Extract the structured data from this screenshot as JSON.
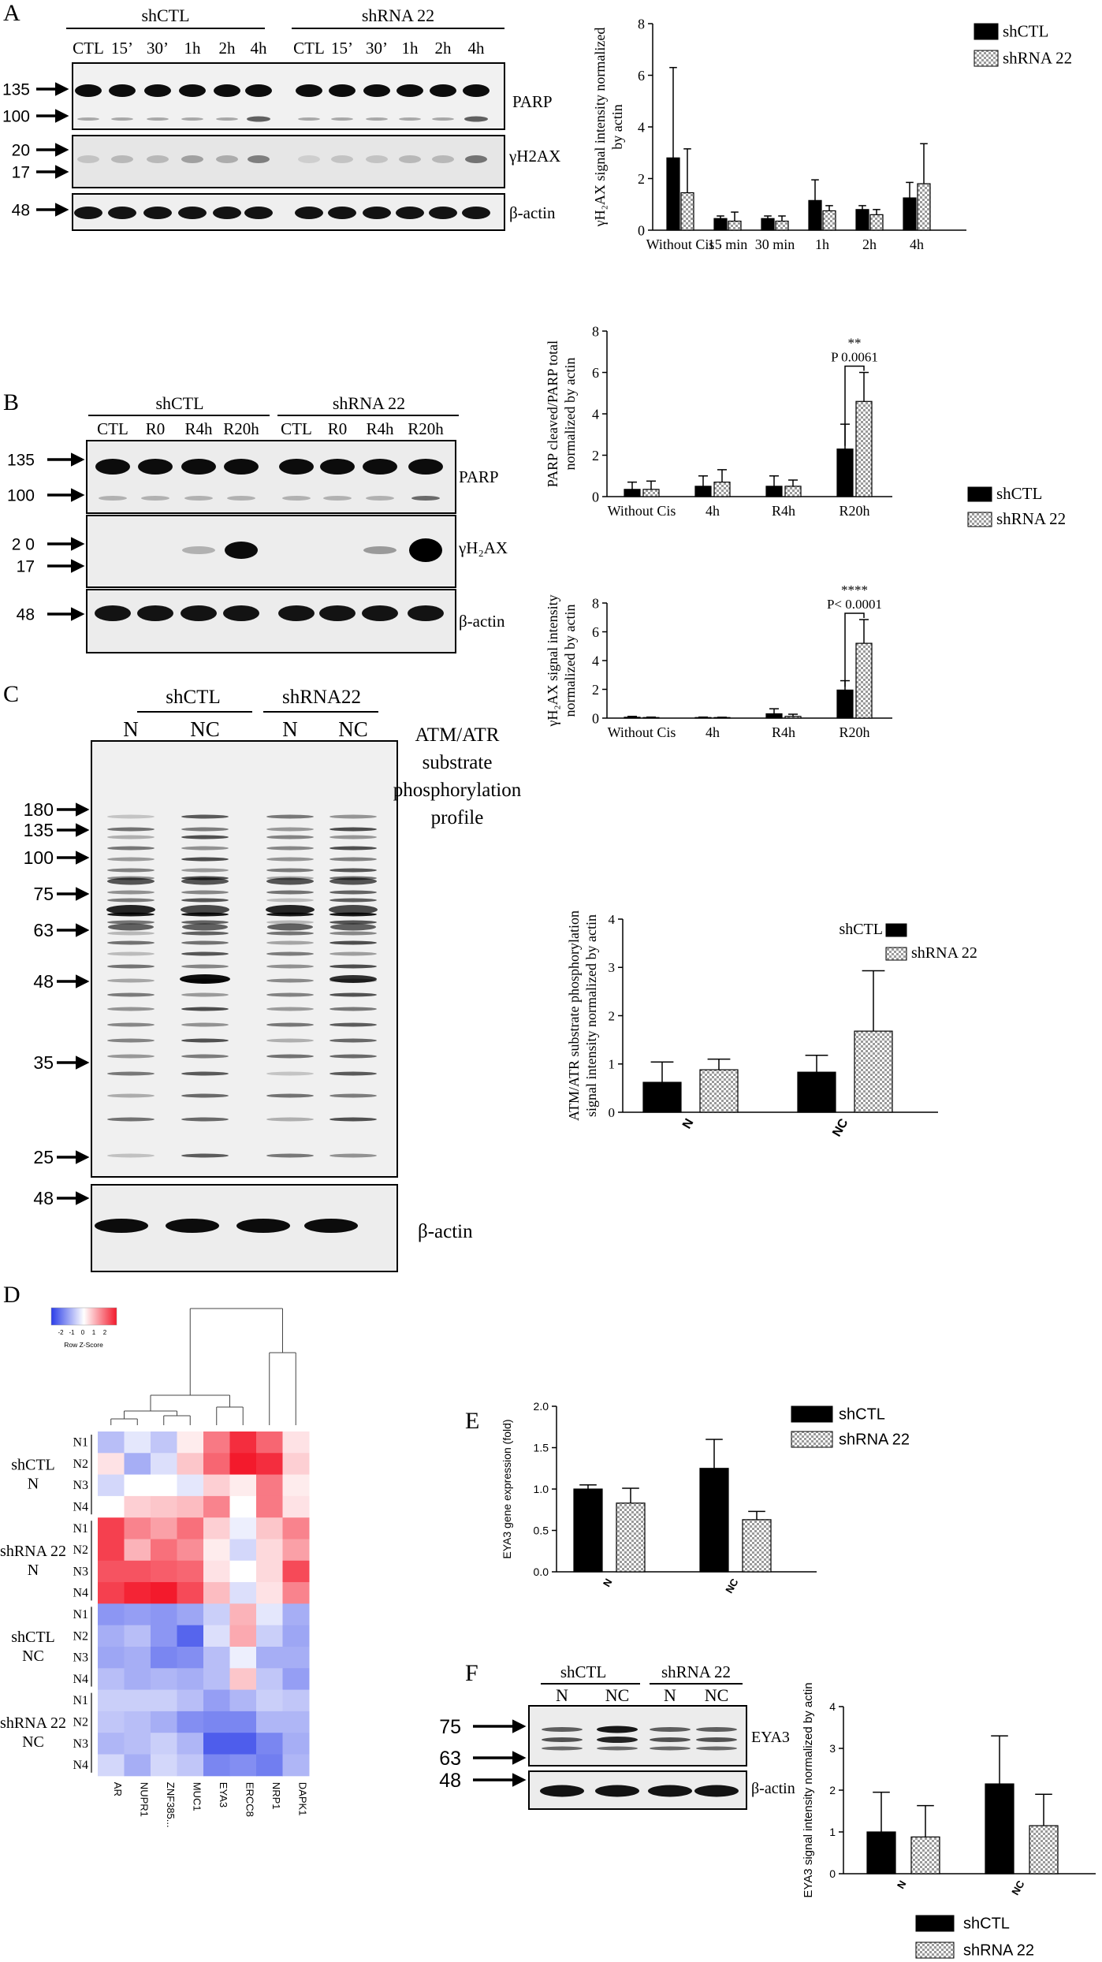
{
  "panels": {
    "A": "A",
    "B": "B",
    "C": "C",
    "D": "D",
    "E": "E",
    "F": "F"
  },
  "blotA": {
    "groups": [
      "shCTL",
      "shRNA 22"
    ],
    "lanes": [
      "CTL",
      "15’",
      "30’",
      "1h",
      "2h",
      "4h",
      "CTL",
      "15’",
      "30’",
      "1h",
      "2h",
      "4h"
    ],
    "markers": [
      "135",
      "100",
      "20",
      "17",
      "48"
    ],
    "labels": [
      "PARP",
      "γH2AX",
      "β-actin"
    ]
  },
  "blotB": {
    "groups": [
      "shCTL",
      "shRNA 22"
    ],
    "lanes": [
      "CTL",
      "R0",
      "R4h",
      "R20h",
      "CTL",
      "R0",
      "R4h",
      "R20h"
    ],
    "markers": [
      "135",
      "100",
      "2 0",
      "17",
      "48"
    ],
    "labels": [
      "PARP",
      "γH₂AX",
      "β-actin"
    ]
  },
  "blotC": {
    "groups": [
      "shCTL",
      "shRNA22"
    ],
    "lanes": [
      "N",
      "NC",
      "N",
      "NC"
    ],
    "markers": [
      "180",
      "135",
      "100",
      "75",
      "63",
      "48",
      "35",
      "25"
    ],
    "actin_marker": "48",
    "title_lines": [
      "ATM/ATR",
      "substrate",
      "phosphorylation",
      "profile"
    ],
    "actin_label": "β-actin"
  },
  "blotF": {
    "groups": [
      "shCTL",
      "shRNA 22"
    ],
    "lanes": [
      "N",
      "NC",
      "N",
      "NC"
    ],
    "markers": [
      "75",
      "63",
      "48"
    ],
    "labels": [
      "EYA3",
      "β-actin"
    ]
  },
  "heatmap": {
    "key_ticks": [
      "-2",
      "-1",
      "0",
      "1",
      "2"
    ],
    "key_title": "Row Z-Score",
    "genes": [
      "AR",
      "NUPR1",
      "ZNF385...",
      "MUC1",
      "EYA3",
      "ERCC8",
      "NRP1",
      "DAPK1"
    ],
    "groups": [
      {
        "label_lines": [
          "shCTL",
          "N"
        ],
        "rows": [
          "N1",
          "N2",
          "N3",
          "N4"
        ]
      },
      {
        "label_lines": [
          "shRNA 22",
          "N"
        ],
        "rows": [
          "N1",
          "N2",
          "N3",
          "N4"
        ]
      },
      {
        "label_lines": [
          "shCTL",
          "NC"
        ],
        "rows": [
          "N1",
          "N2",
          "N3",
          "N4"
        ]
      },
      {
        "label_lines": [
          "shRNA 22",
          "NC"
        ],
        "rows": [
          "N1",
          "N2",
          "N3",
          "N4"
        ]
      }
    ],
    "z": [
      [
        -0.8,
        -0.3,
        -0.7,
        0.2,
        1.4,
        2.2,
        1.6,
        0.3
      ],
      [
        0.3,
        -1.0,
        -0.4,
        0.6,
        1.6,
        2.4,
        2.2,
        0.5
      ],
      [
        -0.5,
        0.0,
        0.0,
        -0.3,
        0.5,
        0.2,
        1.4,
        0.2
      ],
      [
        0.0,
        0.5,
        0.6,
        0.7,
        1.3,
        0.0,
        1.4,
        0.3
      ],
      [
        2.0,
        1.3,
        1.0,
        1.5,
        0.5,
        -0.2,
        0.6,
        1.3
      ],
      [
        2.0,
        0.8,
        1.5,
        1.2,
        0.2,
        -0.5,
        0.4,
        1.0
      ],
      [
        1.8,
        1.8,
        1.7,
        1.6,
        0.3,
        0.0,
        0.4,
        1.9
      ],
      [
        2.0,
        2.3,
        2.4,
        1.9,
        0.7,
        -0.4,
        0.3,
        1.3
      ],
      [
        -1.3,
        -1.2,
        -1.3,
        -1.1,
        -0.6,
        0.8,
        -0.3,
        -1.0
      ],
      [
        -1.0,
        -0.8,
        -1.3,
        -1.9,
        -0.4,
        0.9,
        -0.6,
        -1.1
      ],
      [
        -1.1,
        -1.0,
        -1.5,
        -1.4,
        -0.8,
        -0.2,
        -1.0,
        -1.0
      ],
      [
        -0.8,
        -1.0,
        -0.9,
        -1.0,
        -0.8,
        0.6,
        -0.7,
        -1.2
      ],
      [
        -0.6,
        -0.6,
        -0.6,
        -0.8,
        -1.2,
        -0.9,
        -0.6,
        -0.7
      ],
      [
        -0.7,
        -0.8,
        -1.0,
        -1.4,
        -1.5,
        -1.5,
        -0.9,
        -0.9
      ],
      [
        -0.9,
        -0.8,
        -0.6,
        -0.9,
        -2.0,
        -2.0,
        -1.5,
        -1.0
      ],
      [
        -0.5,
        -1.0,
        -0.5,
        -0.7,
        -1.5,
        -1.4,
        -1.6,
        -0.9
      ]
    ],
    "colors": {
      "low": "#2a3de8",
      "mid": "#ffffff",
      "high": "#f31a2c"
    }
  },
  "chart_data": [
    {
      "id": "A",
      "type": "bar",
      "ylabel_lines": [
        "γH₂AX signal intensity normalized",
        "by actin"
      ],
      "categories": [
        "Without Cis",
        "15 min",
        "30 min",
        "1h",
        "2h",
        "4h"
      ],
      "ylim": [
        0,
        8
      ],
      "yticks": [
        "0",
        "2",
        "4",
        "6",
        "8"
      ],
      "series": [
        {
          "name": "shCTL",
          "values": [
            2.8,
            0.45,
            0.45,
            1.15,
            0.8,
            1.25
          ],
          "errors": [
            3.5,
            0.1,
            0.1,
            0.8,
            0.15,
            0.6
          ]
        },
        {
          "name": "shRNA 22",
          "values": [
            1.45,
            0.35,
            0.35,
            0.75,
            0.6,
            1.8
          ],
          "errors": [
            1.7,
            0.35,
            0.2,
            0.2,
            0.2,
            1.55
          ]
        }
      ]
    },
    {
      "id": "B1",
      "type": "bar",
      "ylabel_lines": [
        "PARP cleaved/PARP total",
        "normalized by actin"
      ],
      "categories": [
        "Without Cis",
        "4h",
        "R4h",
        "R20h"
      ],
      "ylim": [
        0,
        8
      ],
      "yticks": [
        "0",
        "2",
        "4",
        "6",
        "8"
      ],
      "annotation": {
        "stars": "**",
        "p": "P 0.0061"
      },
      "series": [
        {
          "name": "shCTL",
          "values": [
            0.35,
            0.5,
            0.5,
            2.3
          ],
          "errors": [
            0.35,
            0.5,
            0.5,
            1.2
          ]
        },
        {
          "name": "shRNA 22",
          "values": [
            0.35,
            0.7,
            0.5,
            4.6
          ],
          "errors": [
            0.4,
            0.6,
            0.3,
            1.4
          ]
        }
      ]
    },
    {
      "id": "B2",
      "type": "bar",
      "ylabel_lines": [
        "γH₂AX signal intensity",
        "normalized by actin"
      ],
      "categories": [
        "Without Cis",
        "4h",
        "R4h",
        "R20h"
      ],
      "ylim": [
        0,
        8
      ],
      "yticks": [
        "0",
        "2",
        "4",
        "6",
        "8"
      ],
      "annotation": {
        "stars": "****",
        "p": "P< 0.0001"
      },
      "series": [
        {
          "name": "shCTL",
          "values": [
            0.06,
            0.04,
            0.3,
            1.95
          ],
          "errors": [
            0.06,
            0.03,
            0.35,
            0.65
          ]
        },
        {
          "name": "shRNA 22",
          "values": [
            0.04,
            0.04,
            0.12,
            5.2
          ],
          "errors": [
            0.03,
            0.02,
            0.15,
            1.65
          ]
        }
      ]
    },
    {
      "id": "C",
      "type": "bar",
      "ylabel_lines": [
        "ATM/ATR substrate phosphorylation",
        "signal intensity normalized by actin"
      ],
      "categories": [
        "N",
        "NC"
      ],
      "ylim": [
        0,
        4
      ],
      "yticks": [
        "0",
        "1",
        "2",
        "3",
        "4"
      ],
      "series": [
        {
          "name": "shCTL",
          "values": [
            0.62,
            0.83
          ],
          "errors": [
            0.42,
            0.35
          ]
        },
        {
          "name": "shRNA 22",
          "values": [
            0.88,
            1.68
          ],
          "errors": [
            0.22,
            1.25
          ]
        }
      ]
    },
    {
      "id": "E",
      "type": "bar",
      "ylabel_lines": [
        "EYA3  gene expression (fold)"
      ],
      "categories": [
        "N",
        "NC"
      ],
      "ylim": [
        0,
        2.0
      ],
      "yticks": [
        "0.0",
        "0.5",
        "1.0",
        "1.5",
        "2.0"
      ],
      "series": [
        {
          "name": "shCTL",
          "values": [
            1.0,
            1.25
          ],
          "errors": [
            0.05,
            0.35
          ]
        },
        {
          "name": "shRNA 22",
          "values": [
            0.83,
            0.63
          ],
          "errors": [
            0.18,
            0.1
          ]
        }
      ]
    },
    {
      "id": "F",
      "type": "bar",
      "ylabel_lines": [
        "EYA3 signal intensity normalized by actin"
      ],
      "categories": [
        "N",
        "NC"
      ],
      "ylim": [
        0,
        4
      ],
      "yticks": [
        "0",
        "1",
        "2",
        "3",
        "4"
      ],
      "series": [
        {
          "name": "shCTL",
          "values": [
            1.0,
            2.15
          ],
          "errors": [
            0.95,
            1.15
          ]
        },
        {
          "name": "shRNA 22",
          "values": [
            0.88,
            1.15
          ],
          "errors": [
            0.75,
            0.75
          ]
        }
      ]
    }
  ],
  "legend": {
    "series_names": [
      "shCTL",
      "shRNA 22"
    ]
  },
  "colors": {
    "black": "#000000",
    "checker": "#c9c9c9"
  }
}
